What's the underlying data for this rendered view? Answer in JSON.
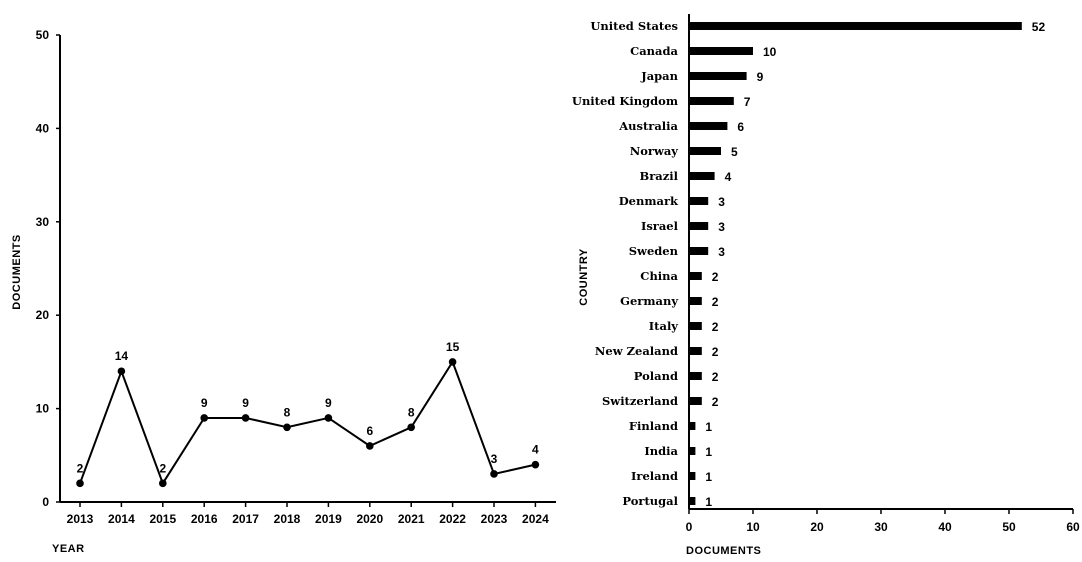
{
  "chart_data": [
    {
      "type": "line",
      "xlabel": "YEAR",
      "ylabel": "DOCUMENTS",
      "ylim": [
        0,
        50
      ],
      "yticks": [
        0,
        10,
        20,
        30,
        40,
        50
      ],
      "x": [
        "2013",
        "2014",
        "2015",
        "2016",
        "2017",
        "2018",
        "2019",
        "2020",
        "2021",
        "2022",
        "2023",
        "2024"
      ],
      "series": [
        {
          "values": [
            2,
            14,
            2,
            9,
            9,
            8,
            9,
            6,
            8,
            15,
            3,
            4
          ]
        }
      ],
      "data_labels": true,
      "grid": false
    },
    {
      "type": "bar",
      "orientation": "horizontal",
      "xlabel": "DOCUMENTS",
      "ylabel": "COUNTRY",
      "xlim": [
        0,
        60
      ],
      "xticks": [
        0,
        10,
        20,
        30,
        40,
        50,
        60
      ],
      "categories": [
        "United States",
        "Canada",
        "Japan",
        "United Kingdom",
        "Australia",
        "Norway",
        "Brazil",
        "Denmark",
        "Israel",
        "Sweden",
        "China",
        "Germany",
        "Italy",
        "New Zealand",
        "Poland",
        "Switzerland",
        "Finland",
        "India",
        "Ireland",
        "Portugal"
      ],
      "values": [
        52,
        10,
        9,
        7,
        6,
        5,
        4,
        3,
        3,
        3,
        2,
        2,
        2,
        2,
        2,
        2,
        1,
        1,
        1,
        1
      ],
      "data_labels": true,
      "grid": false
    }
  ]
}
